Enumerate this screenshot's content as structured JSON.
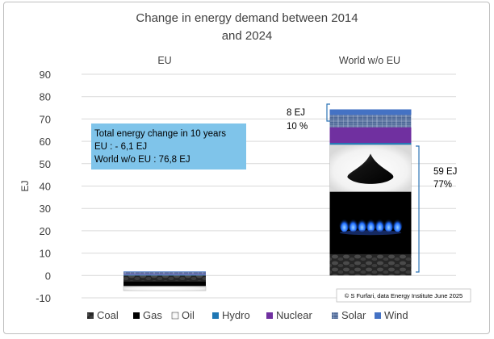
{
  "chart_data": {
    "type": "bar",
    "title_lines": [
      "Change in energy demand between 2014",
      "and 2024"
    ],
    "xlabel": "",
    "ylabel": "EJ",
    "ylim": [
      -10,
      90
    ],
    "yticks": [
      -10,
      0,
      10,
      20,
      30,
      40,
      50,
      60,
      70,
      80,
      90
    ],
    "grid": true,
    "categories": [
      "EU",
      "World w/o EU"
    ],
    "series": [
      {
        "name": "Coal",
        "values": [
          -2.5,
          9.5
        ],
        "color": "#2b2b2b"
      },
      {
        "name": "Gas",
        "values": [
          -2.3,
          28.0
        ],
        "color": "#000000"
      },
      {
        "name": "Oil",
        "values": [
          -2.0,
          21.0
        ],
        "color": "#111111"
      },
      {
        "name": "Hydro",
        "values": [
          0.4,
          0.8
        ],
        "color": "#1f77b4"
      },
      {
        "name": "Nuclear",
        "values": [
          0.3,
          7.0
        ],
        "color": "#7030a0"
      },
      {
        "name": "Solar",
        "values": [
          0.8,
          5.5
        ],
        "color": "#5a6f96"
      },
      {
        "name": "Wind",
        "values": [
          0.3,
          2.5
        ],
        "color": "#4472c4"
      }
    ],
    "annotations": {
      "summary_box": [
        "Total energy change in 10 years",
        "EU : - 6,1 EJ",
        "World w/o EU : 76,8 EJ"
      ],
      "renewables_label": [
        "8 EJ",
        "10 %"
      ],
      "fossil_label": [
        "59 EJ",
        "77%"
      ],
      "credit": "© S Furfari, data Energy Institute June 2025"
    },
    "legend_position": "bottom"
  }
}
